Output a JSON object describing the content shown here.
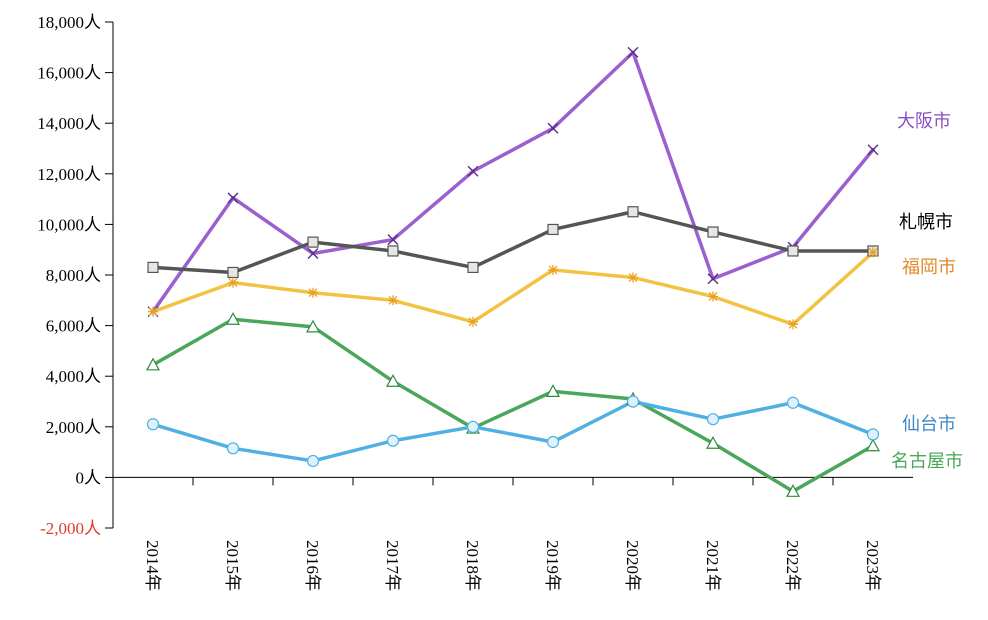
{
  "chart_data": {
    "type": "line",
    "title": "",
    "xlabel": "",
    "ylabel": "",
    "categories": [
      "2014年",
      "2015年",
      "2016年",
      "2017年",
      "2018年",
      "2019年",
      "2020年",
      "2021年",
      "2022年",
      "2023年"
    ],
    "ylim": [
      -2000,
      18000
    ],
    "y_ticks": [
      -2000,
      0,
      2000,
      4000,
      6000,
      8000,
      10000,
      12000,
      14000,
      16000,
      18000
    ],
    "y_tick_labels": [
      "-2,000人",
      "0人",
      "2,000人",
      "4,000人",
      "6,000人",
      "8,000人",
      "10,000人",
      "12,000人",
      "14,000人",
      "16,000人",
      "18,000人"
    ],
    "negative_tick_color": "#e03a2e",
    "grid": false,
    "legend": "direct labels at right end of lines",
    "series": [
      {
        "name": "大阪市",
        "color": "#9b5fcf",
        "marker": "x",
        "values": [
          6550,
          11050,
          8850,
          9400,
          12100,
          13800,
          16800,
          7850,
          9100,
          12950
        ]
      },
      {
        "name": "札幌市",
        "color": "#555555",
        "marker": "square",
        "values": [
          8300,
          8100,
          9300,
          8950,
          8300,
          9800,
          10500,
          9700,
          8950,
          8950
        ]
      },
      {
        "name": "福岡市",
        "color": "#f2c343",
        "marker": "star",
        "values": [
          6550,
          7700,
          7300,
          7000,
          6150,
          8200,
          7900,
          7150,
          6050,
          8900
        ]
      },
      {
        "name": "名古屋市",
        "color": "#4aa65a",
        "marker": "triangle",
        "values": [
          4450,
          6250,
          5950,
          3800,
          1950,
          3400,
          3100,
          1350,
          -550,
          1250
        ]
      },
      {
        "name": "仙台市",
        "color": "#4fb0e3",
        "marker": "circle",
        "values": [
          2100,
          1150,
          650,
          1450,
          2000,
          1400,
          3000,
          2300,
          2950,
          1700
        ]
      }
    ],
    "label_colors": {
      "大阪市": "#8a4fc2",
      "札幌市": "#000000",
      "福岡市": "#e2892a",
      "名古屋市": "#4aa65a",
      "仙台市": "#3f86c9"
    }
  }
}
